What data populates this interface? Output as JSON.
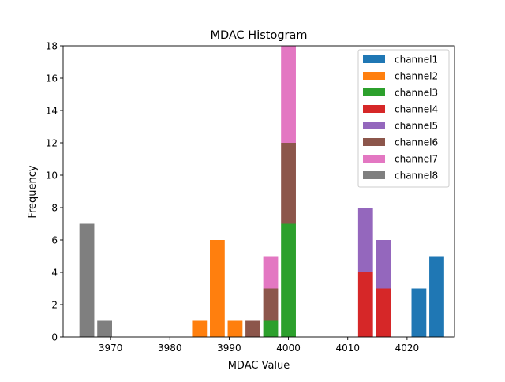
{
  "chart_data": {
    "type": "bar",
    "stacked": true,
    "title": "MDAC Histogram",
    "xlabel": "MDAC Value",
    "ylabel": "Frequency",
    "xlim": [
      3962,
      4028
    ],
    "ylim": [
      0,
      18
    ],
    "xticks": [
      3970,
      3980,
      3990,
      4000,
      4010,
      4020
    ],
    "yticks": [
      0,
      2,
      4,
      6,
      8,
      10,
      12,
      14,
      16,
      18
    ],
    "bar_width": 2.5,
    "legend_position": "upper-right",
    "series": [
      {
        "name": "channel1",
        "color": "#1f77b4",
        "bars": [
          {
            "x": 4022,
            "y": 3
          },
          {
            "x": 4025,
            "y": 5
          }
        ]
      },
      {
        "name": "channel2",
        "color": "#ff7f0e",
        "bars": [
          {
            "x": 3985,
            "y": 1
          },
          {
            "x": 3988,
            "y": 6
          },
          {
            "x": 3991,
            "y": 1
          }
        ]
      },
      {
        "name": "channel3",
        "color": "#2ca02c",
        "bars": [
          {
            "x": 3997,
            "y": 1
          },
          {
            "x": 4000,
            "y": 7
          }
        ]
      },
      {
        "name": "channel4",
        "color": "#d62728",
        "bars": [
          {
            "x": 4013,
            "y": 4
          },
          {
            "x": 4016,
            "y": 3
          }
        ]
      },
      {
        "name": "channel5",
        "color": "#9467bd",
        "bars": [
          {
            "x": 4013,
            "y": 4
          },
          {
            "x": 4016,
            "y": 3
          }
        ]
      },
      {
        "name": "channel6",
        "color": "#8c564b",
        "bars": [
          {
            "x": 3994,
            "y": 1
          },
          {
            "x": 3997,
            "y": 2
          },
          {
            "x": 4000,
            "y": 5
          }
        ]
      },
      {
        "name": "channel7",
        "color": "#e377c2",
        "bars": [
          {
            "x": 3997,
            "y": 2
          },
          {
            "x": 4000,
            "y": 6
          }
        ]
      },
      {
        "name": "channel8",
        "color": "#7f7f7f",
        "bars": [
          {
            "x": 3966,
            "y": 7
          },
          {
            "x": 3969,
            "y": 1
          }
        ]
      }
    ]
  }
}
